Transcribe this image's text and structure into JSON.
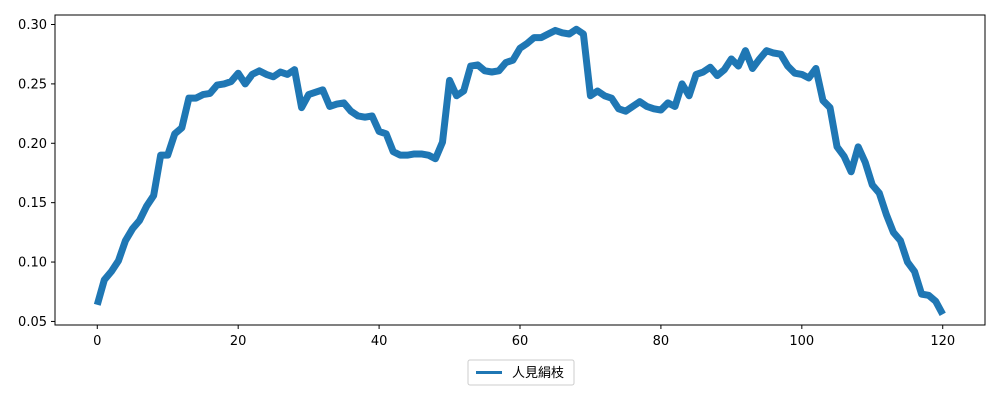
{
  "chart_data": {
    "type": "line",
    "title": "",
    "xlabel": "",
    "ylabel": "",
    "xlim": [
      -6,
      126
    ],
    "ylim": [
      0.047,
      0.308
    ],
    "xticks": [
      0,
      20,
      40,
      60,
      80,
      100,
      120
    ],
    "yticks": [
      0.05,
      0.1,
      0.15,
      0.2,
      0.25,
      0.3
    ],
    "ytick_labels": [
      "0.05",
      "0.10",
      "0.15",
      "0.20",
      "0.25",
      "0.30"
    ],
    "grid": false,
    "legend_position": "bottom-center",
    "series": [
      {
        "name": "人見絹枝",
        "color": "#1f77b4",
        "x": [
          0,
          1,
          2,
          3,
          4,
          5,
          6,
          7,
          8,
          9,
          10,
          11,
          12,
          13,
          14,
          15,
          16,
          17,
          18,
          19,
          20,
          21,
          22,
          23,
          24,
          25,
          26,
          27,
          28,
          29,
          30,
          31,
          32,
          33,
          34,
          35,
          36,
          37,
          38,
          39,
          40,
          41,
          42,
          43,
          44,
          45,
          46,
          47,
          48,
          49,
          50,
          51,
          52,
          53,
          54,
          55,
          56,
          57,
          58,
          59,
          60,
          61,
          62,
          63,
          64,
          65,
          66,
          67,
          68,
          69,
          70,
          71,
          72,
          73,
          74,
          75,
          76,
          77,
          78,
          79,
          80,
          81,
          82,
          83,
          84,
          85,
          86,
          87,
          88,
          89,
          90,
          91,
          92,
          93,
          94,
          95,
          96,
          97,
          98,
          99,
          100,
          101,
          102,
          103,
          104,
          105,
          106,
          107,
          108,
          109,
          110,
          111,
          112,
          113,
          114,
          115,
          116,
          117,
          118,
          119,
          120
        ],
        "values": [
          0.064,
          0.085,
          0.092,
          0.101,
          0.118,
          0.128,
          0.135,
          0.147,
          0.156,
          0.19,
          0.19,
          0.208,
          0.213,
          0.238,
          0.238,
          0.241,
          0.242,
          0.249,
          0.25,
          0.252,
          0.259,
          0.25,
          0.258,
          0.261,
          0.258,
          0.256,
          0.26,
          0.258,
          0.262,
          0.23,
          0.241,
          0.243,
          0.245,
          0.231,
          0.233,
          0.234,
          0.227,
          0.223,
          0.222,
          0.223,
          0.21,
          0.208,
          0.193,
          0.19,
          0.19,
          0.191,
          0.191,
          0.19,
          0.187,
          0.201,
          0.253,
          0.24,
          0.244,
          0.265,
          0.266,
          0.261,
          0.26,
          0.261,
          0.268,
          0.27,
          0.28,
          0.284,
          0.289,
          0.289,
          0.292,
          0.295,
          0.293,
          0.292,
          0.296,
          0.292,
          0.24,
          0.244,
          0.24,
          0.238,
          0.229,
          0.227,
          0.231,
          0.235,
          0.231,
          0.229,
          0.228,
          0.234,
          0.231,
          0.25,
          0.24,
          0.258,
          0.26,
          0.264,
          0.257,
          0.262,
          0.271,
          0.265,
          0.278,
          0.263,
          0.271,
          0.278,
          0.276,
          0.275,
          0.265,
          0.259,
          0.258,
          0.255,
          0.263,
          0.236,
          0.23,
          0.197,
          0.189,
          0.176,
          0.197,
          0.184,
          0.165,
          0.158,
          0.14,
          0.125,
          0.118,
          0.1,
          0.092,
          0.073,
          0.072,
          0.067,
          0.056
        ]
      }
    ]
  }
}
